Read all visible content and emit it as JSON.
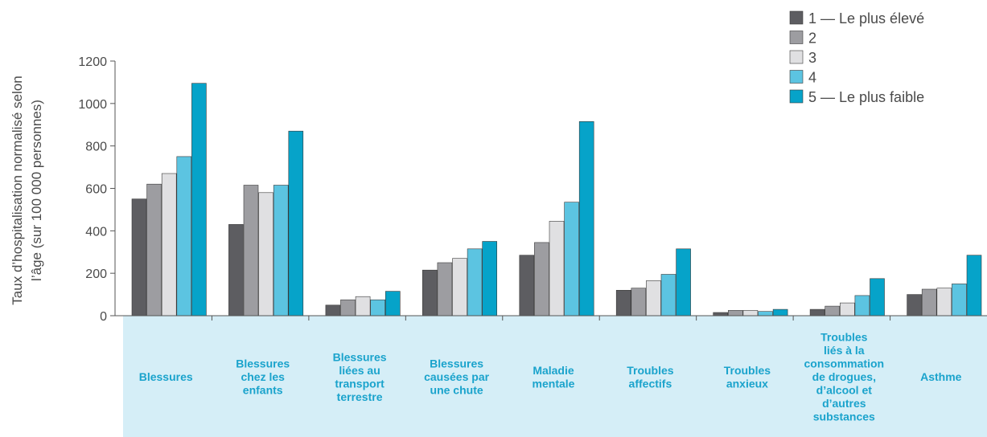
{
  "chart_data": {
    "type": "bar",
    "ylabel": [
      "Taux d’hospitalisation normalisé selon",
      "l’âge (sur 100 000 personnes)"
    ],
    "ylim": [
      0,
      1200
    ],
    "yticks": [
      0,
      200,
      400,
      600,
      800,
      1000,
      1200
    ],
    "grid": false,
    "legend_position": "top-right",
    "categories": [
      [
        "Blessures"
      ],
      [
        "Blessures",
        "chez les",
        "enfants"
      ],
      [
        "Blessures",
        "liées au",
        "transport",
        "terrestre"
      ],
      [
        "Blessures",
        "causées par",
        "une chute"
      ],
      [
        "Maladie",
        "mentale"
      ],
      [
        "Troubles",
        "affectifs"
      ],
      [
        "Troubles",
        "anxieux"
      ],
      [
        "Troubles",
        "liés à la",
        "consommation",
        "de drogues,",
        "d’alcool et",
        "d’autres",
        "substances"
      ],
      [
        "Asthme"
      ]
    ],
    "series": [
      {
        "name": "1 — Le plus élevé",
        "color": "#5d5d61",
        "values": [
          550,
          430,
          50,
          215,
          285,
          120,
          15,
          30,
          100
        ]
      },
      {
        "name": "2",
        "color": "#9d9da1",
        "values": [
          620,
          615,
          75,
          250,
          345,
          130,
          25,
          45,
          125
        ]
      },
      {
        "name": "3",
        "color": "#e0e0e2",
        "values": [
          670,
          580,
          90,
          270,
          445,
          165,
          25,
          60,
          130
        ]
      },
      {
        "name": "4",
        "color": "#5cc4e1",
        "values": [
          750,
          615,
          75,
          315,
          535,
          195,
          20,
          95,
          150
        ]
      },
      {
        "name": "5 — Le plus faible",
        "color": "#06a3c9",
        "values": [
          1095,
          870,
          115,
          350,
          915,
          315,
          30,
          175,
          285
        ]
      }
    ],
    "category_band_color": "#d5eef7",
    "label_color": "#1aa3cc"
  }
}
